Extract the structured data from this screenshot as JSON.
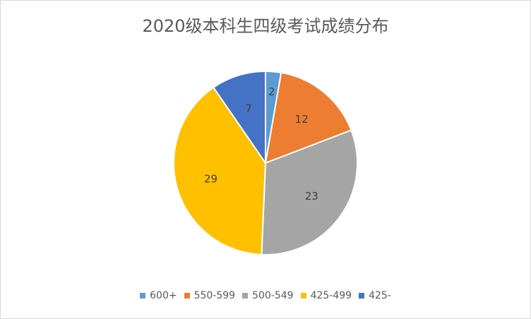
{
  "chart_data": {
    "type": "pie",
    "title": "2020级本科生四级考试成绩分布",
    "categories": [
      "600+",
      "550-599",
      "500-549",
      "425-499",
      "425-"
    ],
    "values": [
      2,
      12,
      23,
      29,
      7
    ],
    "colors": [
      "#5B9BD5",
      "#ED7D31",
      "#A5A5A5",
      "#FFC000",
      "#4472C4"
    ],
    "data_labels": true,
    "legend_position": "bottom"
  }
}
